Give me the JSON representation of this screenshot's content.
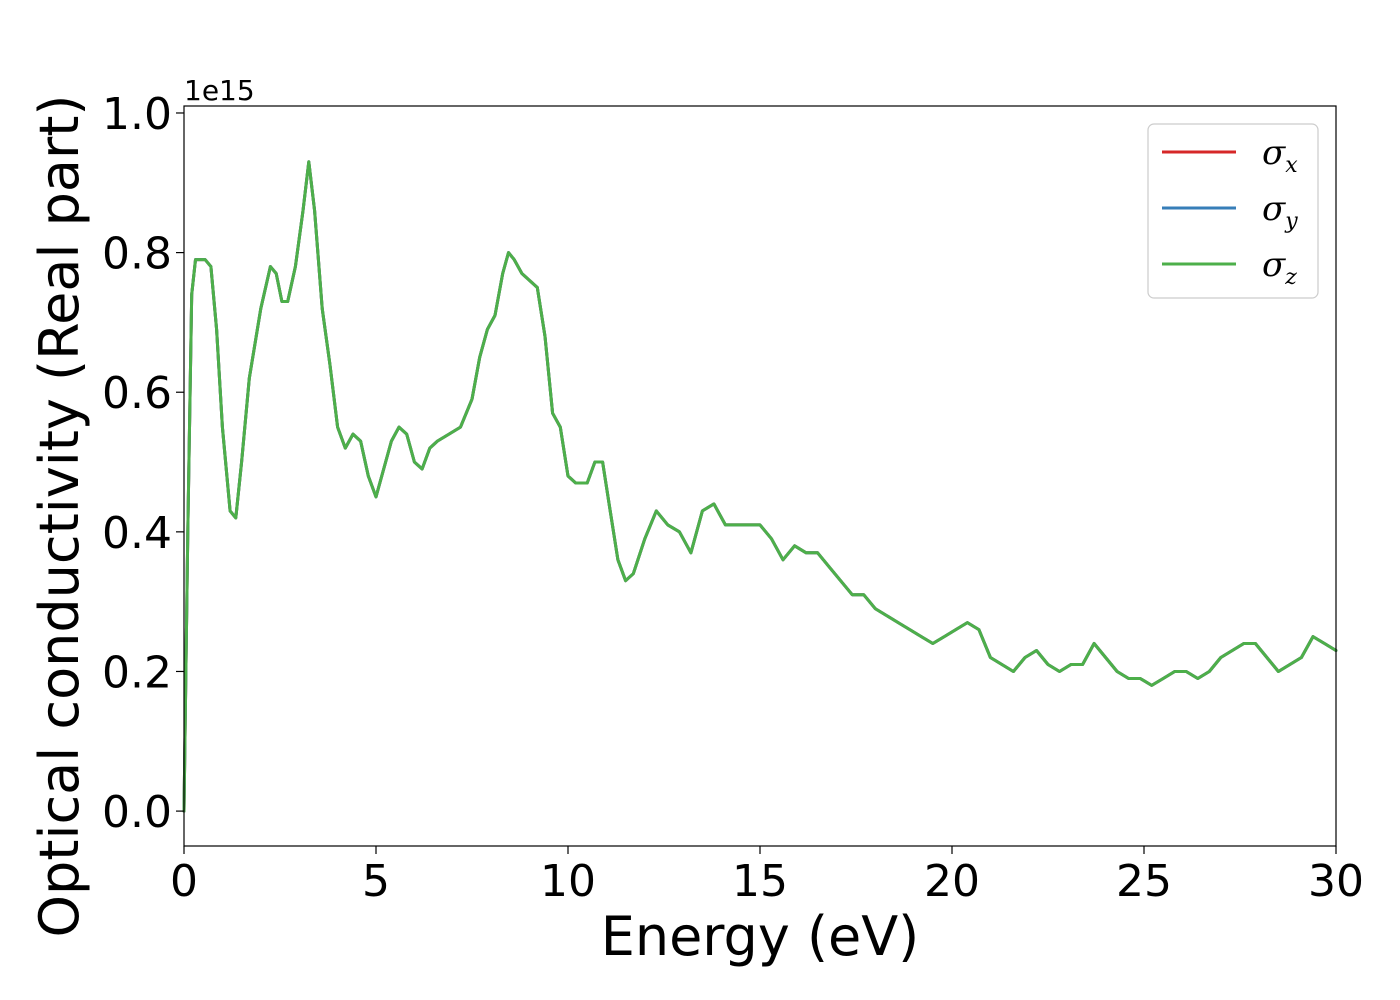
{
  "chart_data": {
    "type": "line",
    "title": "",
    "xlabel": "Energy (eV)",
    "ylabel": "Optical conductivity (Real part)",
    "y_offset_label": "1e15",
    "xlim": [
      0,
      30
    ],
    "ylim": [
      -0.05,
      1.01
    ],
    "xticks": [
      0,
      5,
      10,
      15,
      20,
      25,
      30
    ],
    "xtick_labels": [
      "0",
      "5",
      "10",
      "15",
      "20",
      "25",
      "30"
    ],
    "yticks": [
      0.0,
      0.2,
      0.4,
      0.6,
      0.8,
      1.0
    ],
    "ytick_labels": [
      "0.0",
      "0.2",
      "0.4",
      "0.6",
      "0.8",
      "1.0"
    ],
    "grid": false,
    "legend_position": "top-right",
    "legend": [
      {
        "symbol": "σ",
        "subscript": "x",
        "color": "#d62728"
      },
      {
        "symbol": "σ",
        "subscript": "y",
        "color": "#377eb8"
      },
      {
        "symbol": "σ",
        "subscript": "z",
        "color": "#4daf4a"
      }
    ],
    "x": [
      0.0,
      0.1,
      0.2,
      0.3,
      0.4,
      0.55,
      0.7,
      0.85,
      1.0,
      1.2,
      1.35,
      1.5,
      1.7,
      2.0,
      2.25,
      2.4,
      2.55,
      2.7,
      2.9,
      3.1,
      3.25,
      3.4,
      3.6,
      3.8,
      4.0,
      4.2,
      4.4,
      4.6,
      4.8,
      5.0,
      5.2,
      5.4,
      5.6,
      5.8,
      6.0,
      6.2,
      6.4,
      6.6,
      6.9,
      7.2,
      7.5,
      7.7,
      7.9,
      8.1,
      8.3,
      8.45,
      8.6,
      8.8,
      9.0,
      9.2,
      9.4,
      9.6,
      9.8,
      10.0,
      10.2,
      10.5,
      10.7,
      10.9,
      11.1,
      11.3,
      11.5,
      11.7,
      12.0,
      12.3,
      12.6,
      12.9,
      13.2,
      13.5,
      13.8,
      14.1,
      14.4,
      14.7,
      15.0,
      15.3,
      15.6,
      15.9,
      16.2,
      16.5,
      16.8,
      17.1,
      17.4,
      17.7,
      18.0,
      18.3,
      18.6,
      18.9,
      19.2,
      19.5,
      19.8,
      20.1,
      20.4,
      20.7,
      21.0,
      21.3,
      21.6,
      21.9,
      22.2,
      22.5,
      22.8,
      23.1,
      23.4,
      23.7,
      24.0,
      24.3,
      24.6,
      24.9,
      25.2,
      25.5,
      25.8,
      26.1,
      26.4,
      26.7,
      27.0,
      27.3,
      27.6,
      27.9,
      28.2,
      28.5,
      28.8,
      29.1,
      29.4,
      29.7,
      30.0
    ],
    "series": [
      {
        "name": "σx",
        "color": "#d62728",
        "values": [
          0.0,
          0.4,
          0.74,
          0.79,
          0.79,
          0.79,
          0.78,
          0.69,
          0.55,
          0.43,
          0.42,
          0.5,
          0.62,
          0.72,
          0.78,
          0.77,
          0.73,
          0.73,
          0.78,
          0.86,
          0.93,
          0.86,
          0.72,
          0.64,
          0.55,
          0.52,
          0.54,
          0.53,
          0.48,
          0.45,
          0.49,
          0.53,
          0.55,
          0.54,
          0.5,
          0.49,
          0.52,
          0.53,
          0.54,
          0.55,
          0.59,
          0.65,
          0.69,
          0.71,
          0.77,
          0.8,
          0.79,
          0.77,
          0.76,
          0.75,
          0.68,
          0.57,
          0.55,
          0.48,
          0.47,
          0.47,
          0.5,
          0.5,
          0.43,
          0.36,
          0.33,
          0.34,
          0.39,
          0.43,
          0.41,
          0.4,
          0.37,
          0.43,
          0.44,
          0.41,
          0.41,
          0.41,
          0.41,
          0.39,
          0.36,
          0.38,
          0.37,
          0.37,
          0.35,
          0.33,
          0.31,
          0.31,
          0.29,
          0.28,
          0.27,
          0.26,
          0.25,
          0.24,
          0.25,
          0.26,
          0.27,
          0.26,
          0.22,
          0.21,
          0.2,
          0.22,
          0.23,
          0.21,
          0.2,
          0.21,
          0.21,
          0.24,
          0.22,
          0.2,
          0.19,
          0.19,
          0.18,
          0.19,
          0.2,
          0.2,
          0.19,
          0.2,
          0.22,
          0.23,
          0.24,
          0.24,
          0.22,
          0.2,
          0.21,
          0.22,
          0.25,
          0.24,
          0.23
        ]
      },
      {
        "name": "σy",
        "color": "#377eb8",
        "values": [
          0.0,
          0.4,
          0.74,
          0.79,
          0.79,
          0.79,
          0.78,
          0.69,
          0.55,
          0.43,
          0.42,
          0.5,
          0.62,
          0.72,
          0.78,
          0.77,
          0.73,
          0.73,
          0.78,
          0.86,
          0.93,
          0.86,
          0.72,
          0.64,
          0.55,
          0.52,
          0.54,
          0.53,
          0.48,
          0.45,
          0.49,
          0.53,
          0.55,
          0.54,
          0.5,
          0.49,
          0.52,
          0.53,
          0.54,
          0.55,
          0.59,
          0.65,
          0.69,
          0.71,
          0.77,
          0.8,
          0.79,
          0.77,
          0.76,
          0.75,
          0.68,
          0.57,
          0.55,
          0.48,
          0.47,
          0.47,
          0.5,
          0.5,
          0.43,
          0.36,
          0.33,
          0.34,
          0.39,
          0.43,
          0.41,
          0.4,
          0.37,
          0.43,
          0.44,
          0.41,
          0.41,
          0.41,
          0.41,
          0.39,
          0.36,
          0.38,
          0.37,
          0.37,
          0.35,
          0.33,
          0.31,
          0.31,
          0.29,
          0.28,
          0.27,
          0.26,
          0.25,
          0.24,
          0.25,
          0.26,
          0.27,
          0.26,
          0.22,
          0.21,
          0.2,
          0.22,
          0.23,
          0.21,
          0.2,
          0.21,
          0.21,
          0.24,
          0.22,
          0.2,
          0.19,
          0.19,
          0.18,
          0.19,
          0.2,
          0.2,
          0.19,
          0.2,
          0.22,
          0.23,
          0.24,
          0.24,
          0.22,
          0.2,
          0.21,
          0.22,
          0.25,
          0.24,
          0.23
        ]
      },
      {
        "name": "σz",
        "color": "#4daf4a",
        "values": [
          0.0,
          0.4,
          0.74,
          0.79,
          0.79,
          0.79,
          0.78,
          0.69,
          0.55,
          0.43,
          0.42,
          0.5,
          0.62,
          0.72,
          0.78,
          0.77,
          0.73,
          0.73,
          0.78,
          0.86,
          0.93,
          0.86,
          0.72,
          0.64,
          0.55,
          0.52,
          0.54,
          0.53,
          0.48,
          0.45,
          0.49,
          0.53,
          0.55,
          0.54,
          0.5,
          0.49,
          0.52,
          0.53,
          0.54,
          0.55,
          0.59,
          0.65,
          0.69,
          0.71,
          0.77,
          0.8,
          0.79,
          0.77,
          0.76,
          0.75,
          0.68,
          0.57,
          0.55,
          0.48,
          0.47,
          0.47,
          0.5,
          0.5,
          0.43,
          0.36,
          0.33,
          0.34,
          0.39,
          0.43,
          0.41,
          0.4,
          0.37,
          0.43,
          0.44,
          0.41,
          0.41,
          0.41,
          0.41,
          0.39,
          0.36,
          0.38,
          0.37,
          0.37,
          0.35,
          0.33,
          0.31,
          0.31,
          0.29,
          0.28,
          0.27,
          0.26,
          0.25,
          0.24,
          0.25,
          0.26,
          0.27,
          0.26,
          0.22,
          0.21,
          0.2,
          0.22,
          0.23,
          0.21,
          0.2,
          0.21,
          0.21,
          0.24,
          0.22,
          0.2,
          0.19,
          0.19,
          0.18,
          0.19,
          0.2,
          0.2,
          0.19,
          0.2,
          0.22,
          0.23,
          0.24,
          0.24,
          0.22,
          0.2,
          0.21,
          0.22,
          0.25,
          0.24,
          0.23
        ]
      }
    ]
  }
}
